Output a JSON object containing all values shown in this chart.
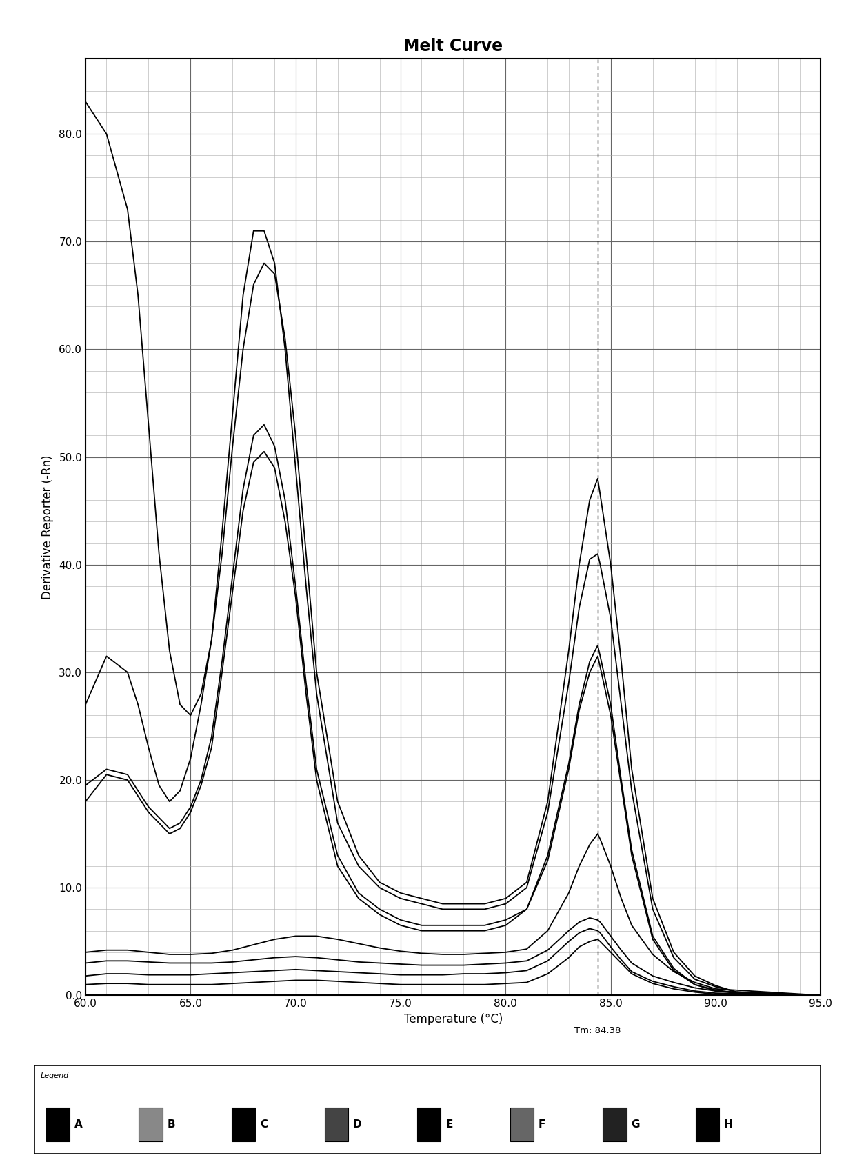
{
  "title": "Melt Curve",
  "xlabel": "Temperature (°C)",
  "ylabel": "Derivative Reporter (-Rn)",
  "xlim": [
    60.0,
    95.0
  ],
  "ylim": [
    0,
    87
  ],
  "xticks": [
    60.0,
    65.0,
    70.0,
    75.0,
    80.0,
    85.0,
    90.0,
    95.0
  ],
  "yticks": [
    0,
    10.0,
    20.0,
    30.0,
    40.0,
    50.0,
    60.0,
    70.0,
    80.0
  ],
  "tm_line": 84.38,
  "tm_label": "Tm: 84.38",
  "legend_labels": [
    "A",
    "B",
    "C",
    "D",
    "E",
    "F",
    "G",
    "H"
  ],
  "background_color": "#ffffff",
  "curve_color": "#000000",
  "curves": [
    {
      "name": "A",
      "x": [
        60.0,
        61.0,
        62.0,
        62.5,
        63.0,
        63.5,
        64.0,
        64.5,
        65.0,
        65.5,
        66.0,
        66.5,
        67.0,
        67.5,
        68.0,
        68.5,
        69.0,
        69.5,
        70.0,
        70.5,
        71.0,
        72.0,
        73.0,
        74.0,
        75.0,
        76.0,
        77.0,
        78.0,
        79.0,
        80.0,
        81.0,
        82.0,
        83.0,
        83.5,
        84.0,
        84.38,
        84.5,
        85.0,
        85.5,
        86.0,
        87.0,
        88.0,
        89.0,
        90.0,
        91.0,
        95.0
      ],
      "y": [
        27.0,
        31.5,
        30.0,
        27.0,
        23.0,
        19.5,
        18.0,
        19.0,
        22.0,
        27.0,
        33.0,
        43.0,
        54.0,
        65.0,
        71.0,
        71.0,
        68.0,
        60.0,
        49.0,
        38.0,
        28.0,
        16.0,
        12.0,
        10.0,
        9.0,
        8.5,
        8.0,
        8.0,
        8.0,
        8.5,
        10.0,
        17.0,
        29.0,
        36.0,
        40.5,
        41.0,
        40.0,
        35.0,
        27.0,
        19.0,
        8.0,
        3.5,
        1.5,
        0.8,
        0.3,
        0.0
      ]
    },
    {
      "name": "B",
      "x": [
        60.0,
        61.0,
        62.0,
        62.5,
        63.0,
        63.5,
        64.0,
        64.5,
        65.0,
        65.5,
        66.0,
        66.5,
        67.0,
        67.5,
        68.0,
        68.5,
        69.0,
        69.5,
        70.0,
        70.5,
        71.0,
        72.0,
        73.0,
        74.0,
        75.0,
        76.0,
        77.0,
        78.0,
        79.0,
        80.0,
        81.0,
        82.0,
        83.0,
        83.5,
        84.0,
        84.38,
        84.5,
        85.0,
        85.5,
        86.0,
        87.0,
        88.0,
        89.0,
        90.0,
        91.0,
        95.0
      ],
      "y": [
        19.5,
        21.0,
        20.5,
        19.0,
        17.5,
        16.5,
        15.5,
        16.0,
        17.5,
        20.0,
        24.0,
        31.0,
        39.0,
        47.0,
        52.0,
        53.0,
        51.0,
        46.0,
        38.0,
        29.0,
        21.0,
        13.0,
        9.5,
        8.0,
        7.0,
        6.5,
        6.5,
        6.5,
        6.5,
        7.0,
        8.0,
        13.0,
        21.5,
        27.0,
        31.0,
        32.5,
        31.5,
        27.0,
        20.0,
        13.5,
        5.5,
        2.5,
        1.0,
        0.5,
        0.2,
        0.0
      ]
    },
    {
      "name": "C",
      "x": [
        60.0,
        61.0,
        62.0,
        62.5,
        63.0,
        63.5,
        64.0,
        64.5,
        65.0,
        65.5,
        66.0,
        66.5,
        67.0,
        67.5,
        68.0,
        68.5,
        69.0,
        69.5,
        70.0,
        70.5,
        71.0,
        72.0,
        73.0,
        74.0,
        75.0,
        76.0,
        77.0,
        78.0,
        79.0,
        80.0,
        81.0,
        82.0,
        83.0,
        83.5,
        84.0,
        84.38,
        84.5,
        85.0,
        85.5,
        86.0,
        87.0,
        88.0,
        89.0,
        90.0,
        91.0,
        95.0
      ],
      "y": [
        83.0,
        80.0,
        73.0,
        65.0,
        53.0,
        41.0,
        32.0,
        27.0,
        26.0,
        28.0,
        33.0,
        41.0,
        51.0,
        60.0,
        66.0,
        68.0,
        67.0,
        61.0,
        52.0,
        41.0,
        30.0,
        18.0,
        13.0,
        10.5,
        9.5,
        9.0,
        8.5,
        8.5,
        8.5,
        9.0,
        10.5,
        18.0,
        32.0,
        40.0,
        46.0,
        48.0,
        46.5,
        40.0,
        31.0,
        21.0,
        9.0,
        4.0,
        1.8,
        0.9,
        0.3,
        0.0
      ]
    },
    {
      "name": "D",
      "x": [
        60.0,
        61.0,
        62.0,
        63.0,
        64.0,
        65.0,
        66.0,
        67.0,
        68.0,
        69.0,
        70.0,
        71.0,
        72.0,
        73.0,
        74.0,
        75.0,
        76.0,
        77.0,
        78.0,
        79.0,
        80.0,
        81.0,
        82.0,
        83.0,
        83.5,
        84.0,
        84.38,
        84.5,
        85.0,
        85.5,
        86.0,
        87.0,
        88.0,
        89.0,
        90.0,
        95.0
      ],
      "y": [
        3.0,
        3.2,
        3.2,
        3.1,
        3.0,
        3.0,
        3.0,
        3.1,
        3.3,
        3.5,
        3.6,
        3.5,
        3.3,
        3.1,
        3.0,
        2.9,
        2.8,
        2.8,
        2.8,
        2.9,
        3.0,
        3.2,
        4.2,
        6.0,
        6.8,
        7.2,
        7.0,
        6.8,
        5.5,
        4.2,
        3.0,
        1.8,
        1.2,
        0.7,
        0.4,
        0.0
      ]
    },
    {
      "name": "E",
      "x": [
        60.0,
        61.0,
        62.0,
        63.0,
        64.0,
        65.0,
        66.0,
        67.0,
        68.0,
        69.0,
        70.0,
        71.0,
        72.0,
        73.0,
        74.0,
        75.0,
        76.0,
        77.0,
        78.0,
        79.0,
        80.0,
        81.0,
        82.0,
        83.0,
        83.5,
        84.0,
        84.38,
        84.5,
        85.0,
        85.5,
        86.0,
        87.0,
        88.0,
        89.0,
        90.0,
        95.0
      ],
      "y": [
        1.8,
        2.0,
        2.0,
        1.9,
        1.9,
        1.9,
        2.0,
        2.1,
        2.2,
        2.3,
        2.4,
        2.3,
        2.2,
        2.1,
        2.0,
        1.9,
        1.9,
        1.9,
        2.0,
        2.0,
        2.1,
        2.3,
        3.2,
        5.0,
        5.8,
        6.2,
        6.0,
        5.8,
        4.5,
        3.3,
        2.2,
        1.3,
        0.8,
        0.4,
        0.2,
        0.0
      ]
    },
    {
      "name": "F",
      "x": [
        60.0,
        61.0,
        62.0,
        62.5,
        63.0,
        63.5,
        64.0,
        64.5,
        65.0,
        65.5,
        66.0,
        66.5,
        67.0,
        67.5,
        68.0,
        68.5,
        69.0,
        69.5,
        70.0,
        70.5,
        71.0,
        72.0,
        73.0,
        74.0,
        75.0,
        76.0,
        77.0,
        78.0,
        79.0,
        80.0,
        81.0,
        82.0,
        83.0,
        83.5,
        84.0,
        84.38,
        84.5,
        85.0,
        85.5,
        86.0,
        87.0,
        88.0,
        89.0,
        90.0,
        91.0,
        95.0
      ],
      "y": [
        18.0,
        20.5,
        20.0,
        18.5,
        17.0,
        16.0,
        15.0,
        15.5,
        17.0,
        19.5,
        23.0,
        30.0,
        37.5,
        45.0,
        49.5,
        50.5,
        49.0,
        44.0,
        37.0,
        28.0,
        20.0,
        12.0,
        9.0,
        7.5,
        6.5,
        6.0,
        6.0,
        6.0,
        6.0,
        6.5,
        8.0,
        12.5,
        21.0,
        26.5,
        30.0,
        31.5,
        30.5,
        26.0,
        19.5,
        13.0,
        5.2,
        2.3,
        1.0,
        0.4,
        0.2,
        0.0
      ]
    },
    {
      "name": "G",
      "x": [
        60.0,
        61.0,
        62.0,
        63.0,
        64.0,
        65.0,
        66.0,
        67.0,
        68.0,
        69.0,
        70.0,
        71.0,
        72.0,
        73.0,
        74.0,
        75.0,
        76.0,
        77.0,
        78.0,
        79.0,
        80.0,
        81.0,
        82.0,
        83.0,
        83.5,
        84.0,
        84.38,
        84.5,
        85.0,
        85.5,
        86.0,
        87.0,
        88.0,
        89.0,
        90.0,
        95.0
      ],
      "y": [
        4.0,
        4.2,
        4.2,
        4.0,
        3.8,
        3.8,
        3.9,
        4.2,
        4.7,
        5.2,
        5.5,
        5.5,
        5.2,
        4.8,
        4.4,
        4.1,
        3.9,
        3.8,
        3.8,
        3.9,
        4.0,
        4.3,
        6.0,
        9.5,
        12.0,
        14.0,
        15.0,
        14.5,
        12.0,
        9.0,
        6.5,
        3.8,
        2.2,
        1.2,
        0.6,
        0.0
      ]
    },
    {
      "name": "H",
      "x": [
        60.0,
        61.0,
        62.0,
        63.0,
        64.0,
        65.0,
        66.0,
        67.0,
        68.0,
        69.0,
        70.0,
        71.0,
        72.0,
        73.0,
        74.0,
        75.0,
        76.0,
        77.0,
        78.0,
        79.0,
        80.0,
        81.0,
        82.0,
        83.0,
        83.5,
        84.0,
        84.38,
        84.5,
        85.0,
        85.5,
        86.0,
        87.0,
        88.0,
        89.0,
        90.0,
        95.0
      ],
      "y": [
        1.0,
        1.1,
        1.1,
        1.0,
        1.0,
        1.0,
        1.0,
        1.1,
        1.2,
        1.3,
        1.4,
        1.4,
        1.3,
        1.2,
        1.1,
        1.0,
        1.0,
        1.0,
        1.0,
        1.0,
        1.1,
        1.2,
        2.0,
        3.5,
        4.5,
        5.0,
        5.2,
        5.0,
        4.0,
        3.0,
        2.0,
        1.1,
        0.6,
        0.3,
        0.1,
        0.0
      ]
    }
  ]
}
